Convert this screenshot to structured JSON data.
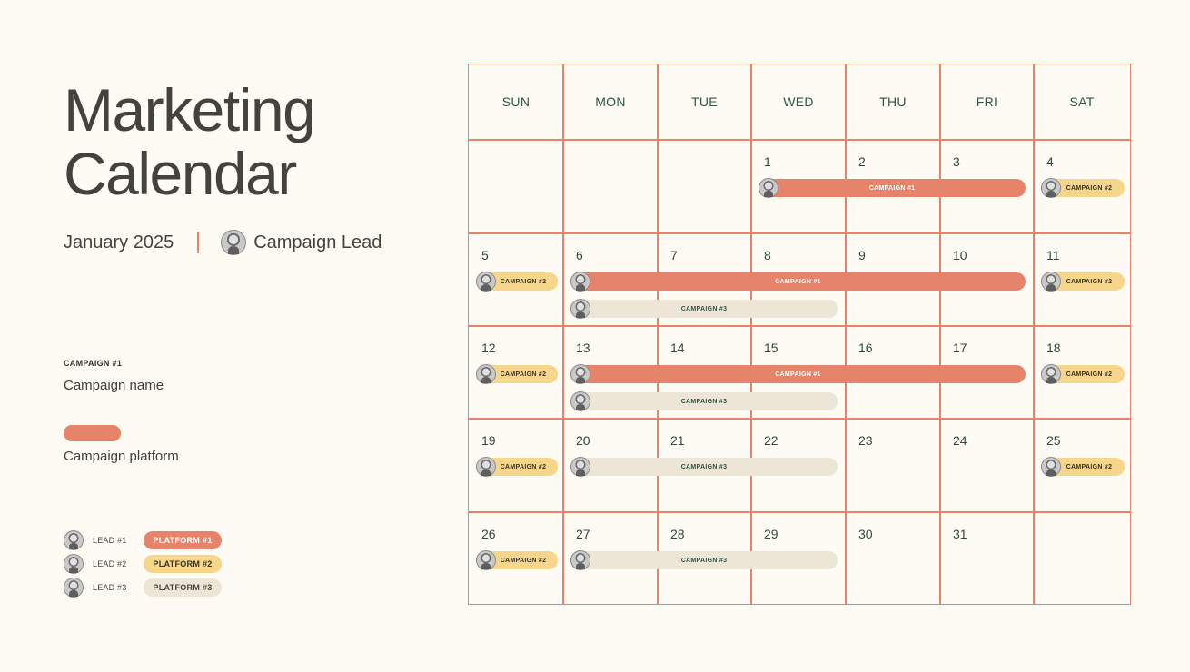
{
  "header": {
    "title_line1": "Marketing",
    "title_line2": "Calendar",
    "month": "January 2025",
    "lead": "Campaign Lead"
  },
  "legend": {
    "key": "CAMPAIGN #1",
    "name": "Campaign name",
    "platform": "Campaign platform",
    "leads": [
      {
        "label": "LEAD  #1",
        "platform": "PLATFORM #1",
        "color": "#e6846b",
        "text_color": "#ffffff"
      },
      {
        "label": "LEAD #2",
        "platform": "PLATFORM #2",
        "color": "#f5d68a",
        "text_color": "#3b3423"
      },
      {
        "label": "LEAD #3",
        "platform": "PLATFORM #3",
        "color": "#ede5d6",
        "text_color": "#4a4640"
      }
    ]
  },
  "calendar": {
    "days": [
      "SUN",
      "MON",
      "TUE",
      "WED",
      "THU",
      "FRI",
      "SAT"
    ],
    "weeks": [
      [
        "",
        "",
        "",
        "1",
        "2",
        "3",
        "4"
      ],
      [
        "5",
        "6",
        "7",
        "8",
        "9",
        "10",
        "11"
      ],
      [
        "12",
        "13",
        "14",
        "15",
        "16",
        "17",
        "18"
      ],
      [
        "19",
        "20",
        "21",
        "22",
        "23",
        "24",
        "25"
      ],
      [
        "26",
        "27",
        "28",
        "29",
        "30",
        "31",
        ""
      ]
    ],
    "events": [
      {
        "week": 0,
        "start": 3,
        "span": 3,
        "lane": 0,
        "label": "CAMPAIGN #1",
        "platform": 1
      },
      {
        "week": 0,
        "start": 6,
        "span": 1,
        "lane": 0,
        "label": "CAMPAIGN #2",
        "platform": 2
      },
      {
        "week": 1,
        "start": 0,
        "span": 1,
        "lane": 0,
        "label": "CAMPAIGN #2",
        "platform": 2
      },
      {
        "week": 1,
        "start": 1,
        "span": 5,
        "lane": 0,
        "label": "CAMPAIGN #1",
        "platform": 1
      },
      {
        "week": 1,
        "start": 6,
        "span": 1,
        "lane": 0,
        "label": "CAMPAIGN #2",
        "platform": 2
      },
      {
        "week": 1,
        "start": 1,
        "span": 3,
        "lane": 1,
        "label": "CAMPAIGN #3",
        "platform": 3
      },
      {
        "week": 2,
        "start": 0,
        "span": 1,
        "lane": 0,
        "label": "CAMPAIGN #2",
        "platform": 2
      },
      {
        "week": 2,
        "start": 1,
        "span": 5,
        "lane": 0,
        "label": "CAMPAIGN #1",
        "platform": 1
      },
      {
        "week": 2,
        "start": 6,
        "span": 1,
        "lane": 0,
        "label": "CAMPAIGN #2",
        "platform": 2
      },
      {
        "week": 2,
        "start": 1,
        "span": 3,
        "lane": 1,
        "label": "CAMPAIGN #3",
        "platform": 3
      },
      {
        "week": 3,
        "start": 0,
        "span": 1,
        "lane": 0,
        "label": "CAMPAIGN #2",
        "platform": 2
      },
      {
        "week": 3,
        "start": 1,
        "span": 3,
        "lane": 0,
        "label": "CAMPAIGN #3",
        "platform": 3
      },
      {
        "week": 3,
        "start": 6,
        "span": 1,
        "lane": 0,
        "label": "CAMPAIGN #2",
        "platform": 2
      },
      {
        "week": 4,
        "start": 0,
        "span": 1,
        "lane": 0,
        "label": "CAMPAIGN #2",
        "platform": 2
      },
      {
        "week": 4,
        "start": 1,
        "span": 3,
        "lane": 0,
        "label": "CAMPAIGN #3",
        "platform": 3
      }
    ]
  },
  "colors": {
    "accent": "#e6846b",
    "platform1": "#e6846b",
    "platform2": "#f5d68a",
    "platform3": "#ede5d6",
    "day_text": "#2f5548",
    "background": "#fdfbf4"
  }
}
